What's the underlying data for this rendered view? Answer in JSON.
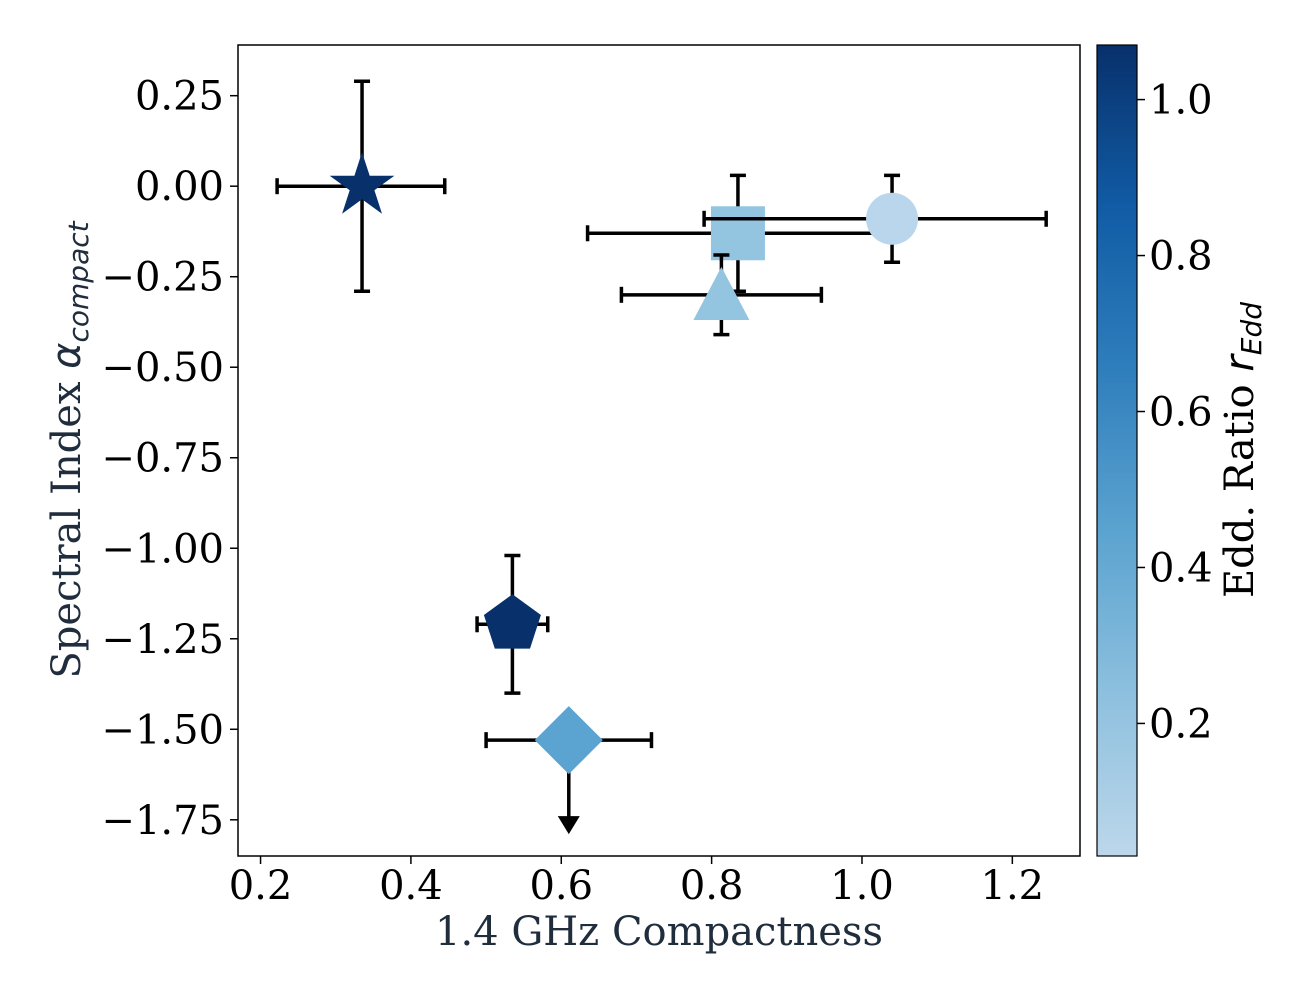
{
  "chart_data": {
    "type": "scatter",
    "title": "",
    "xlabel": "1.4 GHz Compactness",
    "ylabel": {
      "text": "Spectral Index ",
      "symbol": "α",
      "subscript": "compact"
    },
    "xlim": [
      0.17,
      1.29
    ],
    "ylim": [
      -1.85,
      0.39
    ],
    "xticks": [
      0.2,
      0.4,
      0.6,
      0.8,
      1.0,
      1.2
    ],
    "xtick_labels": [
      "0.2",
      "0.4",
      "0.6",
      "0.8",
      "1.0",
      "1.2"
    ],
    "yticks": [
      0.25,
      0.0,
      -0.25,
      -0.5,
      -0.75,
      -1.0,
      -1.25,
      -1.5,
      -1.75
    ],
    "ytick_labels": [
      "0.25",
      "0.00",
      "−0.25",
      "−0.50",
      "−0.75",
      "−1.00",
      "−1.25",
      "−1.50",
      "−1.75"
    ],
    "grid": false,
    "colorbar": {
      "label": {
        "text": "Edd. Ratio ",
        "symbol": "r",
        "subscript": "Edd"
      },
      "range": [
        0.03,
        1.07
      ],
      "ticks": [
        0.2,
        0.4,
        0.6,
        0.8,
        1.0
      ],
      "tick_labels": [
        "0.2",
        "0.4",
        "0.6",
        "0.8",
        "1.0"
      ],
      "colormap": "Blues",
      "color_low": "#c0d8ec",
      "color_high": "#08306b"
    },
    "points": [
      {
        "name": "star",
        "marker": "star",
        "x": 0.335,
        "y": 0.0,
        "x_err": [
          0.113,
          0.11
        ],
        "y_err": [
          0.29,
          0.29
        ],
        "color_value": 1.05,
        "color": "#08306b"
      },
      {
        "name": "pentagon",
        "marker": "pentagon",
        "x": 0.535,
        "y": -1.21,
        "x_err": [
          0.047,
          0.047
        ],
        "y_err": [
          0.19,
          0.19
        ],
        "color_value": 1.04,
        "color": "#08306b"
      },
      {
        "name": "diamond",
        "marker": "diamond",
        "x": 0.61,
        "y": -1.53,
        "x_err": [
          0.11,
          0.11
        ],
        "y_err": [
          0,
          0
        ],
        "upper_limit": true,
        "color_value": 0.4,
        "color": "#5ba3d0"
      },
      {
        "name": "square",
        "marker": "square",
        "x": 0.835,
        "y": -0.13,
        "x_err": [
          0.2,
          0.2
        ],
        "y_err": [
          0.16,
          0.16
        ],
        "color_value": 0.25,
        "color": "#93c4e0"
      },
      {
        "name": "triangle",
        "marker": "triangle",
        "x": 0.813,
        "y": -0.3,
        "x_err": [
          0.133,
          0.133
        ],
        "y_err": [
          0.11,
          0.11
        ],
        "color_value": 0.25,
        "color": "#93c4e0"
      },
      {
        "name": "circle",
        "marker": "circle",
        "x": 1.04,
        "y": -0.09,
        "x_err": [
          0.25,
          0.205
        ],
        "y_err": [
          0.12,
          0.12
        ],
        "color_value": 0.1,
        "color": "#b9d6ec"
      }
    ]
  }
}
